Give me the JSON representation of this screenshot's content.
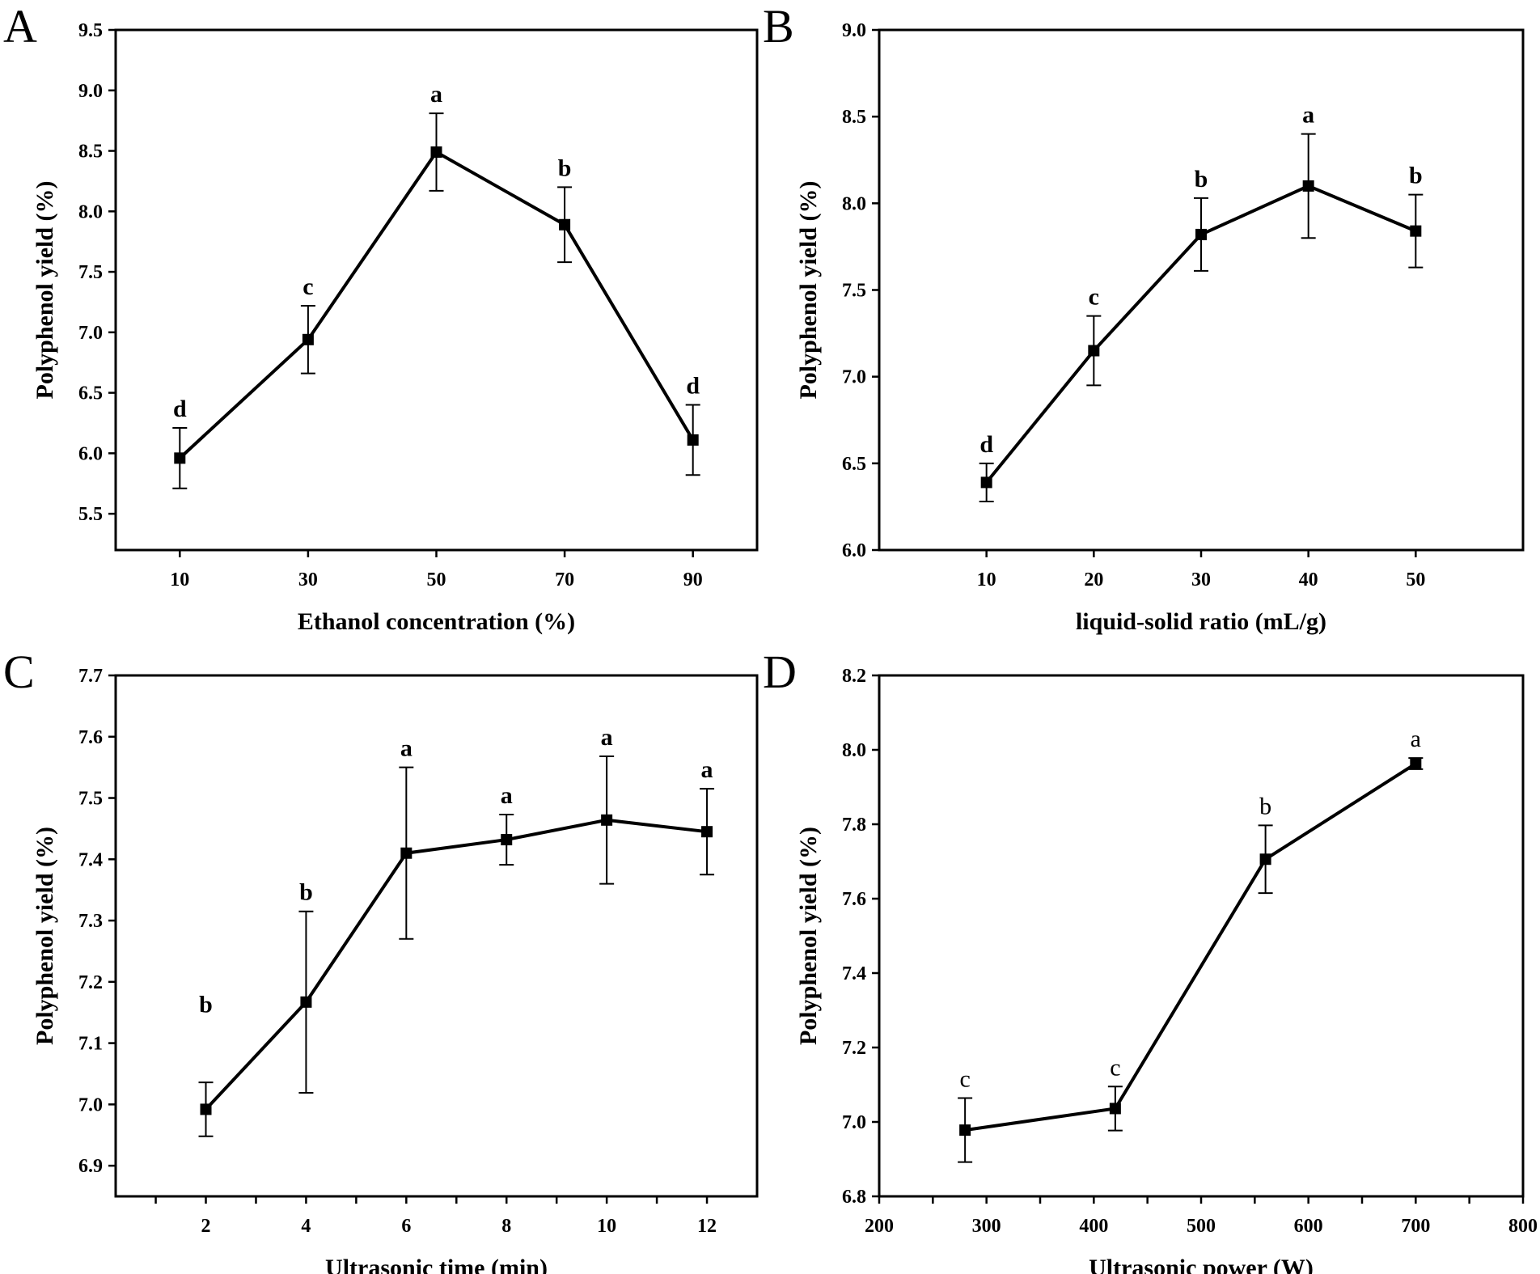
{
  "chart_data": [
    {
      "id": "A",
      "type": "line",
      "panel_label": "A",
      "xlabel": "Ethanol concentration (%)",
      "ylabel": "Polyphenol yield (%)",
      "xlim": [
        0,
        100
      ],
      "ylim": [
        5.2,
        9.5
      ],
      "xticks": [
        10,
        30,
        50,
        70,
        90
      ],
      "xticks_labeled": [
        10,
        30,
        50,
        70,
        90
      ],
      "xtick_labels": [
        "10",
        "30",
        "50",
        "70",
        "90"
      ],
      "yticks": [
        5.5,
        6.0,
        6.5,
        7.0,
        7.5,
        8.0,
        8.5,
        9.0,
        9.5
      ],
      "ytick_labels": [
        "5.5",
        "6.0",
        "6.5",
        "7.0",
        "7.5",
        "8.0",
        "8.5",
        "9.0",
        "9.5"
      ],
      "x": [
        10,
        30,
        50,
        70,
        90
      ],
      "y": [
        5.96,
        6.94,
        8.49,
        7.89,
        6.11
      ],
      "err": [
        0.25,
        0.28,
        0.32,
        0.31,
        0.29
      ],
      "sig_labels": [
        "d",
        "c",
        "a",
        "b",
        "d"
      ],
      "sig_bold": true
    },
    {
      "id": "B",
      "type": "line",
      "panel_label": "B",
      "xlabel": "liquid-solid ratio (mL/g)",
      "ylabel": "Polyphenol yield (%)",
      "xlim": [
        0,
        60
      ],
      "ylim": [
        6.0,
        9.0
      ],
      "xticks": [
        10,
        20,
        30,
        40,
        50
      ],
      "xticks_labeled": [
        10,
        20,
        30,
        40,
        50
      ],
      "xtick_labels": [
        "10",
        "20",
        "30",
        "40",
        "50"
      ],
      "yticks": [
        6.0,
        6.5,
        7.0,
        7.5,
        8.0,
        8.5,
        9.0
      ],
      "ytick_labels": [
        "6.0",
        "6.5",
        "7.0",
        "7.5",
        "8.0",
        "8.5",
        "9.0"
      ],
      "x": [
        10,
        20,
        30,
        40,
        50
      ],
      "y": [
        6.39,
        7.15,
        7.82,
        8.1,
        7.84
      ],
      "err": [
        0.11,
        0.2,
        0.21,
        0.3,
        0.21
      ],
      "sig_labels": [
        "d",
        "c",
        "b",
        "a",
        "b"
      ],
      "sig_bold": true
    },
    {
      "id": "C",
      "type": "line",
      "panel_label": "C",
      "xlabel": "Ultrasonic time (min)",
      "ylabel": "Polyphenol yield (%)",
      "xlim": [
        0.2,
        13
      ],
      "ylim": [
        6.85,
        7.7
      ],
      "xticks": [
        1,
        2,
        3,
        4,
        5,
        6,
        7,
        8,
        9,
        10,
        11,
        12
      ],
      "xticks_labeled": [
        2,
        4,
        6,
        8,
        10,
        12
      ],
      "xtick_labels": [
        "2",
        "4",
        "6",
        "8",
        "10",
        "12"
      ],
      "yticks": [
        6.9,
        7.0,
        7.1,
        7.2,
        7.3,
        7.4,
        7.5,
        7.6,
        7.7
      ],
      "ytick_labels": [
        "6.9",
        "7.0",
        "7.1",
        "7.2",
        "7.3",
        "7.4",
        "7.5",
        "7.6",
        "7.7"
      ],
      "x": [
        2,
        4,
        6,
        8,
        10,
        12
      ],
      "y": [
        6.992,
        7.167,
        7.41,
        7.432,
        7.464,
        7.445
      ],
      "err": [
        0.044,
        0.148,
        0.14,
        0.041,
        0.104,
        0.07
      ],
      "sig_labels": [
        "b",
        "b",
        "a",
        "a",
        "a",
        "a"
      ],
      "sig_bold": true
    },
    {
      "id": "D",
      "type": "line",
      "panel_label": "D",
      "xlabel": "Ultrasonic power (W)",
      "ylabel": "Polyphenol yield (%)",
      "xlim": [
        200,
        800
      ],
      "ylim": [
        6.8,
        8.2
      ],
      "xticks": [
        200,
        250,
        300,
        350,
        400,
        450,
        500,
        550,
        600,
        650,
        700,
        750,
        800
      ],
      "xticks_labeled": [
        200,
        300,
        400,
        500,
        600,
        700,
        800
      ],
      "xtick_labels": [
        "200",
        "300",
        "400",
        "500",
        "600",
        "700",
        "800"
      ],
      "yticks": [
        6.8,
        7.0,
        7.2,
        7.4,
        7.6,
        7.8,
        8.0,
        8.2
      ],
      "ytick_labels": [
        "6.8",
        "7.0",
        "7.2",
        "7.4",
        "7.6",
        "7.8",
        "8.0",
        "8.2"
      ],
      "x": [
        280,
        420,
        560,
        700
      ],
      "y": [
        6.978,
        7.036,
        7.706,
        7.963
      ],
      "err": [
        0.086,
        0.059,
        0.091,
        0.015
      ],
      "sig_labels": [
        "c",
        "c",
        "b",
        "a"
      ],
      "sig_bold": false
    }
  ]
}
